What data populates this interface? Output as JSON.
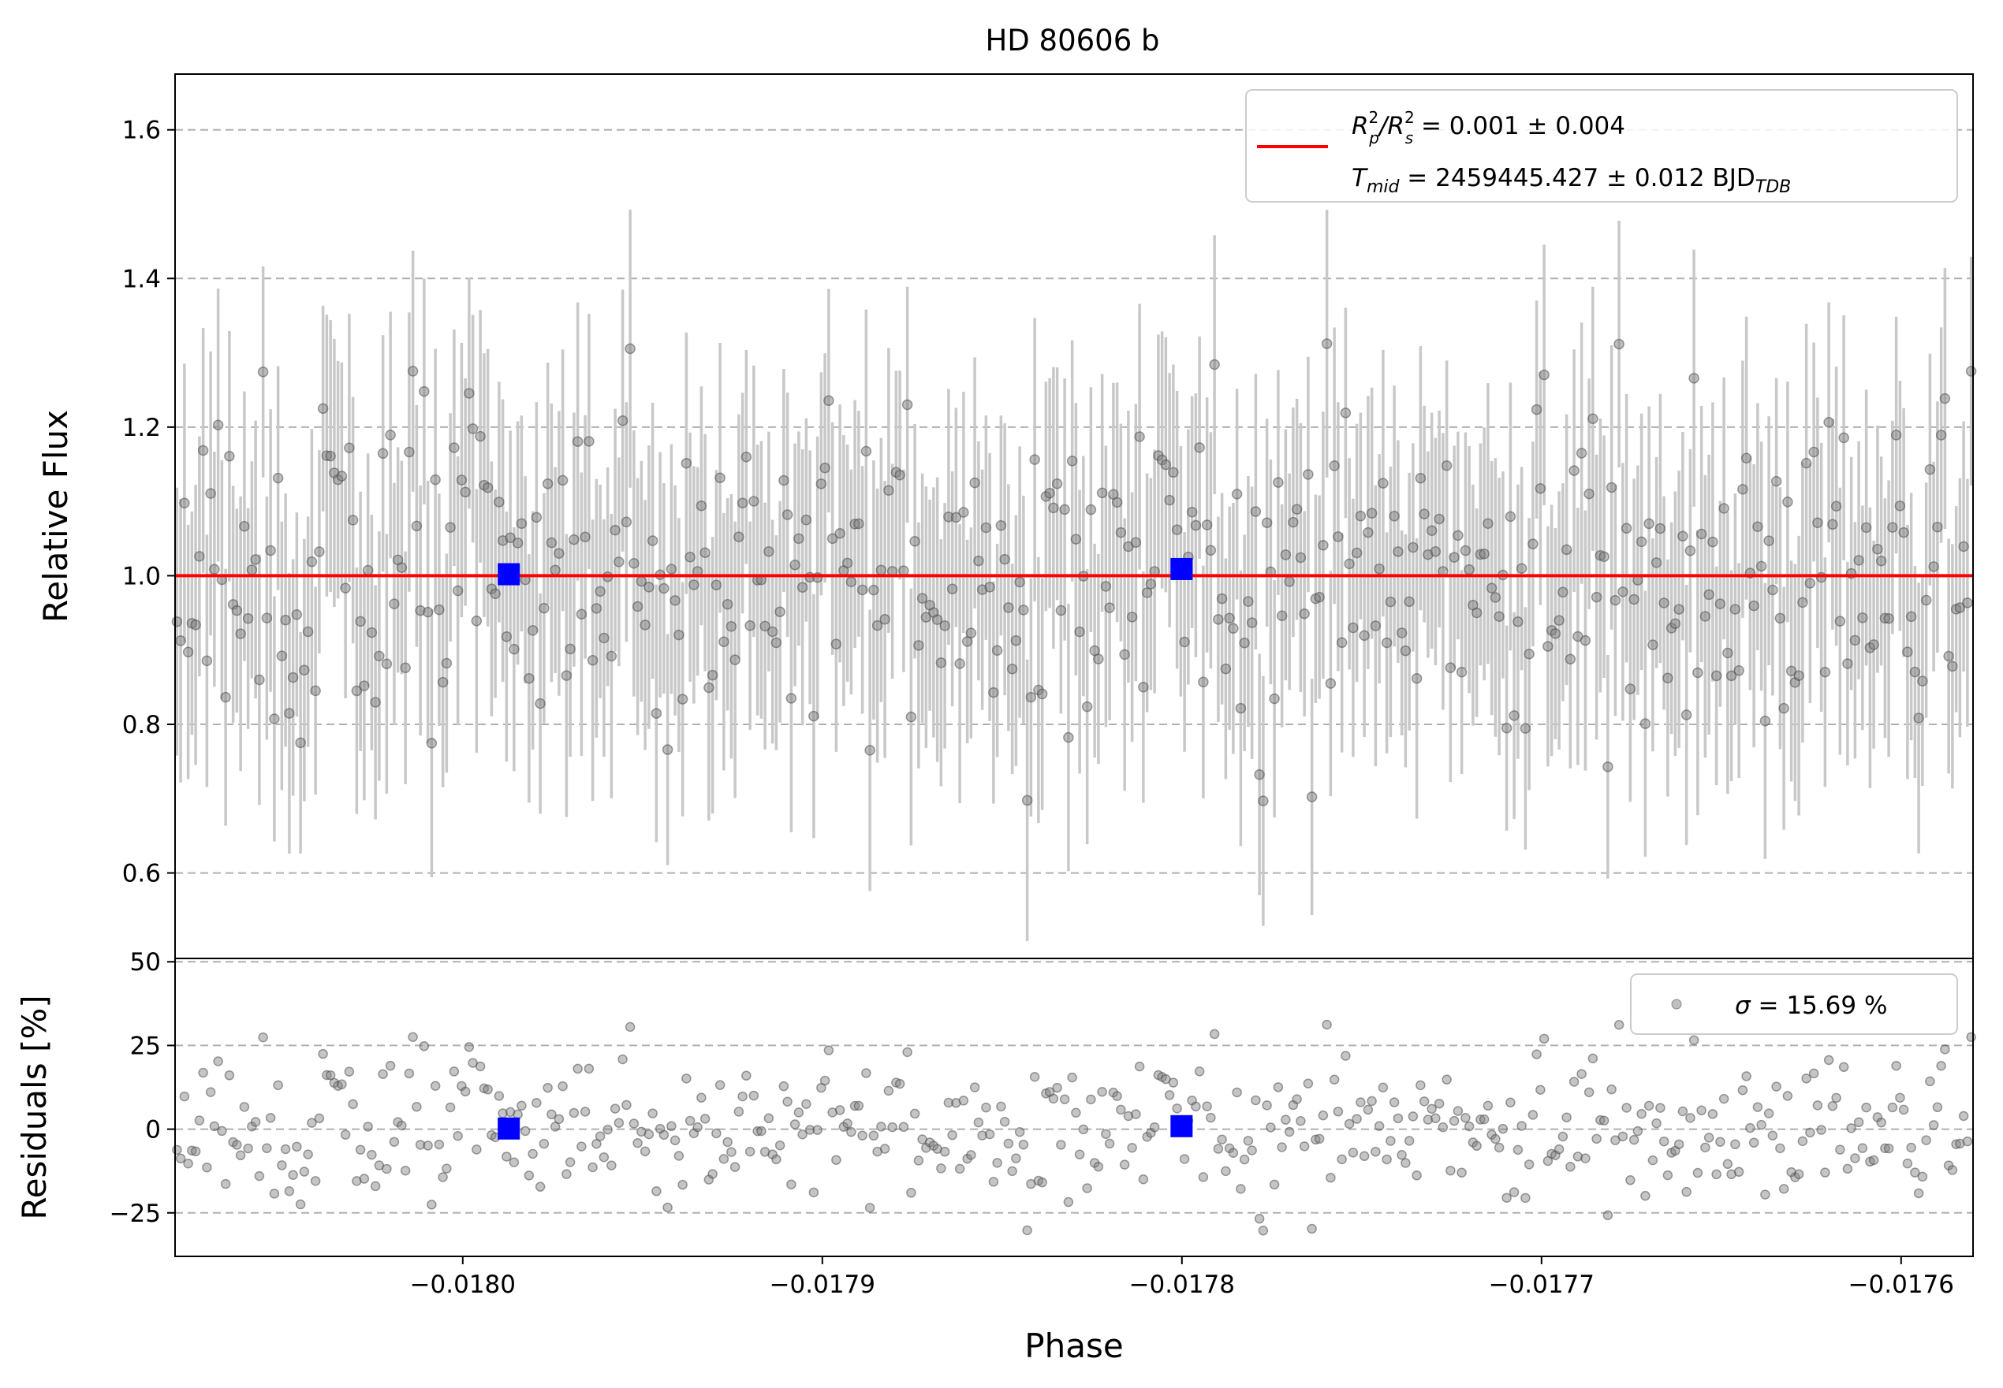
{
  "chart_data": [
    {
      "type": "scatter",
      "panel": "flux",
      "title": "HD 80606 b",
      "xlabel": "",
      "ylabel": "Relative Flux",
      "xlim": [
        -0.01808,
        -0.01758
      ],
      "ylim": [
        0.485,
        1.675
      ],
      "y_ticks": [
        0.6,
        0.8,
        1.0,
        1.2,
        1.4,
        1.6
      ],
      "grid": "horizontal dashed",
      "legend_placement": "upper right",
      "model_label": "R_p^2/R_s^2 = 0.001 ± 0.004",
      "model_label_parts": [
        "R",
        "2",
        "p",
        "/R",
        "2",
        "s",
        " = 0.001 ± 0.004"
      ],
      "tmid_label_parts": [
        "T",
        "mid",
        " = 2459445.427 ± 0.012 BJD",
        "TDB"
      ],
      "model_line": {
        "y": 1.0,
        "color": "#ff0000"
      },
      "binned_points": [
        {
          "x": -0.0179872,
          "y": 1.002
        },
        {
          "x": -0.0178001,
          "y": 1.009
        }
      ],
      "point_count": 480,
      "point_scatter_sigma": 0.157,
      "error_bar_halfwidth": 0.16,
      "colors": {
        "points": "#7f7f7f",
        "error_bars": "#c8c8c8",
        "model": "#ff0000",
        "binned": "#0000ff",
        "grid": "#b0b0b0"
      }
    },
    {
      "type": "scatter",
      "panel": "residuals",
      "xlabel": "Phase",
      "ylabel": "Residuals [%]",
      "xlim": [
        -0.01808,
        -0.01758
      ],
      "ylim": [
        -38,
        51
      ],
      "y_ticks": [
        -25,
        0,
        25,
        50
      ],
      "x_ticks": [
        -0.018,
        -0.0179,
        -0.0178,
        -0.0177,
        -0.0176
      ],
      "x_tick_labels": [
        "−0.0180",
        "−0.0179",
        "−0.0178",
        "−0.0177",
        "−0.0176"
      ],
      "y_tick_labels": [
        "−25",
        "0",
        "25",
        "50"
      ],
      "grid": "horizontal dashed",
      "legend_placement": "upper right",
      "sigma_label_parts": [
        "σ",
        " = 15.69 %"
      ],
      "binned_points": [
        {
          "x": -0.0179872,
          "y": 0.2
        },
        {
          "x": -0.0178001,
          "y": 0.9
        }
      ],
      "colors": {
        "points": "#7f7f7f",
        "binned": "#0000ff",
        "grid": "#b0b0b0"
      }
    }
  ],
  "flux_y_tick_labels": [
    "0.6",
    "0.8",
    "1.0",
    "1.2",
    "1.4",
    "1.6"
  ]
}
